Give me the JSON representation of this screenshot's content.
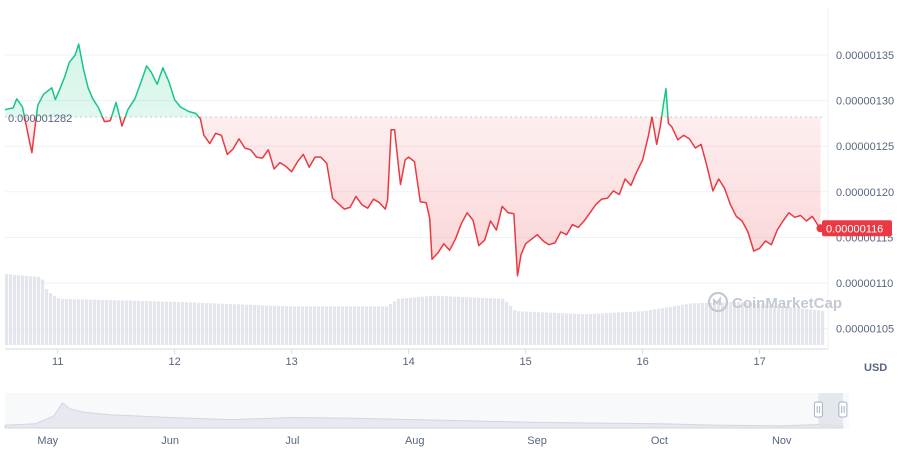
{
  "chart_data": {
    "type": "line",
    "y_unit_label": "USD",
    "watermark": "CoinMarketCap",
    "baseline_value": "0.000001282",
    "baseline": 1.282e-06,
    "current_value_label": "0.00000116",
    "current": 1.16e-06,
    "up_color": "#16c784",
    "down_color": "#ea3943",
    "grid": true,
    "ylim": [
      1.05e-06,
      1.4e-06
    ],
    "y_ticks": [
      {
        "value": 1.35e-06,
        "label": "0.00000135"
      },
      {
        "value": 1.3e-06,
        "label": "0.00000130"
      },
      {
        "value": 1.25e-06,
        "label": "0.00000125"
      },
      {
        "value": 1.2e-06,
        "label": "0.00000120"
      },
      {
        "value": 1.15e-06,
        "label": "0.00000115"
      },
      {
        "value": 1.1e-06,
        "label": "0.00000110"
      },
      {
        "value": 1.05e-06,
        "label": "0.00000105"
      }
    ],
    "x_ticks": [
      {
        "t": 11,
        "label": "11"
      },
      {
        "t": 12,
        "label": "12"
      },
      {
        "t": 13,
        "label": "13"
      },
      {
        "t": 14,
        "label": "14"
      },
      {
        "t": 15,
        "label": "15"
      },
      {
        "t": 16,
        "label": "16"
      },
      {
        "t": 17,
        "label": "17"
      }
    ],
    "xlim": [
      10.55,
      17.55
    ],
    "series": [
      {
        "values": [
          [
            10.55,
            1.29e-06
          ],
          [
            10.62,
            1.292e-06
          ],
          [
            10.65,
            1.302e-06
          ],
          [
            10.7,
            1.293e-06
          ],
          [
            10.75,
            1.261e-06
          ],
          [
            10.78,
            1.243e-06
          ],
          [
            10.8,
            1.265e-06
          ],
          [
            10.83,
            1.295e-06
          ],
          [
            10.88,
            1.307e-06
          ],
          [
            10.95,
            1.314e-06
          ],
          [
            10.98,
            1.301e-06
          ],
          [
            11.02,
            1.313e-06
          ],
          [
            11.06,
            1.326e-06
          ],
          [
            11.1,
            1.342e-06
          ],
          [
            11.15,
            1.35e-06
          ],
          [
            11.18,
            1.362e-06
          ],
          [
            11.22,
            1.335e-06
          ],
          [
            11.26,
            1.314e-06
          ],
          [
            11.3,
            1.302e-06
          ],
          [
            11.35,
            1.292e-06
          ],
          [
            11.4,
            1.277e-06
          ],
          [
            11.45,
            1.278e-06
          ],
          [
            11.5,
            1.298e-06
          ],
          [
            11.55,
            1.272e-06
          ],
          [
            11.6,
            1.29e-06
          ],
          [
            11.66,
            1.302e-06
          ],
          [
            11.72,
            1.323e-06
          ],
          [
            11.76,
            1.338e-06
          ],
          [
            11.8,
            1.331e-06
          ],
          [
            11.85,
            1.318e-06
          ],
          [
            11.9,
            1.336e-06
          ],
          [
            11.95,
            1.321e-06
          ],
          [
            12.0,
            1.301e-06
          ],
          [
            12.05,
            1.293e-06
          ],
          [
            12.12,
            1.288e-06
          ],
          [
            12.18,
            1.286e-06
          ],
          [
            12.22,
            1.28e-06
          ],
          [
            12.25,
            1.262e-06
          ],
          [
            12.3,
            1.253e-06
          ],
          [
            12.35,
            1.264e-06
          ],
          [
            12.4,
            1.262e-06
          ],
          [
            12.45,
            1.241e-06
          ],
          [
            12.5,
            1.247e-06
          ],
          [
            12.55,
            1.258e-06
          ],
          [
            12.6,
            1.248e-06
          ],
          [
            12.65,
            1.246e-06
          ],
          [
            12.7,
            1.238e-06
          ],
          [
            12.75,
            1.237e-06
          ],
          [
            12.8,
            1.246e-06
          ],
          [
            12.85,
            1.225e-06
          ],
          [
            12.9,
            1.232e-06
          ],
          [
            12.95,
            1.228e-06
          ],
          [
            13.0,
            1.222e-06
          ],
          [
            13.05,
            1.233e-06
          ],
          [
            13.1,
            1.241e-06
          ],
          [
            13.15,
            1.227e-06
          ],
          [
            13.2,
            1.238e-06
          ],
          [
            13.25,
            1.238e-06
          ],
          [
            13.3,
            1.231e-06
          ],
          [
            13.35,
            1.193e-06
          ],
          [
            13.4,
            1.187e-06
          ],
          [
            13.45,
            1.181e-06
          ],
          [
            13.5,
            1.183e-06
          ],
          [
            13.55,
            1.195e-06
          ],
          [
            13.6,
            1.186e-06
          ],
          [
            13.65,
            1.182e-06
          ],
          [
            13.7,
            1.192e-06
          ],
          [
            13.75,
            1.188e-06
          ],
          [
            13.8,
            1.181e-06
          ],
          [
            13.82,
            1.191e-06
          ],
          [
            13.85,
            1.268e-06
          ],
          [
            13.88,
            1.268e-06
          ],
          [
            13.9,
            1.244e-06
          ],
          [
            13.93,
            1.208e-06
          ],
          [
            13.97,
            1.235e-06
          ],
          [
            14.0,
            1.238e-06
          ],
          [
            14.05,
            1.233e-06
          ],
          [
            14.1,
            1.189e-06
          ],
          [
            14.15,
            1.188e-06
          ],
          [
            14.18,
            1.171e-06
          ],
          [
            14.2,
            1.126e-06
          ],
          [
            14.25,
            1.133e-06
          ],
          [
            14.3,
            1.143e-06
          ],
          [
            14.35,
            1.136e-06
          ],
          [
            14.4,
            1.148e-06
          ],
          [
            14.45,
            1.165e-06
          ],
          [
            14.5,
            1.177e-06
          ],
          [
            14.55,
            1.169e-06
          ],
          [
            14.6,
            1.141e-06
          ],
          [
            14.65,
            1.147e-06
          ],
          [
            14.7,
            1.168e-06
          ],
          [
            14.75,
            1.158e-06
          ],
          [
            14.8,
            1.184e-06
          ],
          [
            14.85,
            1.177e-06
          ],
          [
            14.9,
            1.176e-06
          ],
          [
            14.93,
            1.108e-06
          ],
          [
            14.96,
            1.131e-06
          ],
          [
            15.0,
            1.143e-06
          ],
          [
            15.05,
            1.148e-06
          ],
          [
            15.1,
            1.153e-06
          ],
          [
            15.15,
            1.146e-06
          ],
          [
            15.2,
            1.142e-06
          ],
          [
            15.25,
            1.144e-06
          ],
          [
            15.3,
            1.156e-06
          ],
          [
            15.35,
            1.153e-06
          ],
          [
            15.4,
            1.164e-06
          ],
          [
            15.45,
            1.161e-06
          ],
          [
            15.5,
            1.168e-06
          ],
          [
            15.55,
            1.177e-06
          ],
          [
            15.6,
            1.186e-06
          ],
          [
            15.65,
            1.192e-06
          ],
          [
            15.7,
            1.193e-06
          ],
          [
            15.75,
            1.201e-06
          ],
          [
            15.8,
            1.197e-06
          ],
          [
            15.85,
            1.214e-06
          ],
          [
            15.9,
            1.207e-06
          ],
          [
            15.95,
            1.222e-06
          ],
          [
            16.0,
            1.235e-06
          ],
          [
            16.05,
            1.262e-06
          ],
          [
            16.08,
            1.282e-06
          ],
          [
            16.12,
            1.252e-06
          ],
          [
            16.15,
            1.271e-06
          ],
          [
            16.18,
            1.298e-06
          ],
          [
            16.2,
            1.313e-06
          ],
          [
            16.22,
            1.275e-06
          ],
          [
            16.25,
            1.271e-06
          ],
          [
            16.3,
            1.257e-06
          ],
          [
            16.35,
            1.262e-06
          ],
          [
            16.4,
            1.258e-06
          ],
          [
            16.45,
            1.248e-06
          ],
          [
            16.5,
            1.252e-06
          ],
          [
            16.55,
            1.228e-06
          ],
          [
            16.6,
            1.201e-06
          ],
          [
            16.65,
            1.214e-06
          ],
          [
            16.7,
            1.204e-06
          ],
          [
            16.75,
            1.186e-06
          ],
          [
            16.8,
            1.173e-06
          ],
          [
            16.85,
            1.168e-06
          ],
          [
            16.9,
            1.156e-06
          ],
          [
            16.95,
            1.135e-06
          ],
          [
            17.0,
            1.138e-06
          ],
          [
            17.05,
            1.146e-06
          ],
          [
            17.1,
            1.142e-06
          ],
          [
            17.15,
            1.158e-06
          ],
          [
            17.2,
            1.168e-06
          ],
          [
            17.25,
            1.177e-06
          ],
          [
            17.3,
            1.172e-06
          ],
          [
            17.35,
            1.174e-06
          ],
          [
            17.4,
            1.168e-06
          ],
          [
            17.45,
            1.173e-06
          ],
          [
            17.5,
            1.163e-06
          ],
          [
            17.52,
            1.16e-06
          ]
        ]
      }
    ],
    "volume_series": [
      [
        10.55,
        0.46
      ],
      [
        10.85,
        0.44
      ],
      [
        10.9,
        0.35
      ],
      [
        11.0,
        0.3
      ],
      [
        12.0,
        0.28
      ],
      [
        13.0,
        0.25
      ],
      [
        13.8,
        0.25
      ],
      [
        13.9,
        0.3
      ],
      [
        14.2,
        0.32
      ],
      [
        14.8,
        0.3
      ],
      [
        14.9,
        0.22
      ],
      [
        15.5,
        0.2
      ],
      [
        16.0,
        0.22
      ],
      [
        16.4,
        0.27
      ],
      [
        16.8,
        0.28
      ],
      [
        17.2,
        0.25
      ],
      [
        17.55,
        0.22
      ]
    ],
    "navigator": {
      "x_ticks": [
        {
          "t": 0.0,
          "label": "May"
        },
        {
          "t": 1.0,
          "label": "Jun"
        },
        {
          "t": 2.0,
          "label": "Jul"
        },
        {
          "t": 3.0,
          "label": "Aug"
        },
        {
          "t": 4.0,
          "label": "Sep"
        },
        {
          "t": 5.0,
          "label": "Oct"
        },
        {
          "t": 6.0,
          "label": "Nov"
        }
      ],
      "xlim": [
        -0.35,
        6.55
      ],
      "selected_range": [
        6.3,
        6.5
      ],
      "series": [
        [
          -0.35,
          0.08
        ],
        [
          -0.1,
          0.12
        ],
        [
          0.05,
          0.35
        ],
        [
          0.12,
          0.72
        ],
        [
          0.18,
          0.55
        ],
        [
          0.3,
          0.45
        ],
        [
          0.5,
          0.38
        ],
        [
          1.0,
          0.3
        ],
        [
          1.5,
          0.24
        ],
        [
          2.0,
          0.3
        ],
        [
          2.5,
          0.28
        ],
        [
          3.0,
          0.24
        ],
        [
          3.5,
          0.2
        ],
        [
          4.0,
          0.16
        ],
        [
          4.5,
          0.14
        ],
        [
          5.0,
          0.12
        ],
        [
          5.5,
          0.08
        ],
        [
          6.0,
          0.06
        ],
        [
          6.3,
          0.1
        ],
        [
          6.5,
          0.06
        ]
      ]
    }
  }
}
